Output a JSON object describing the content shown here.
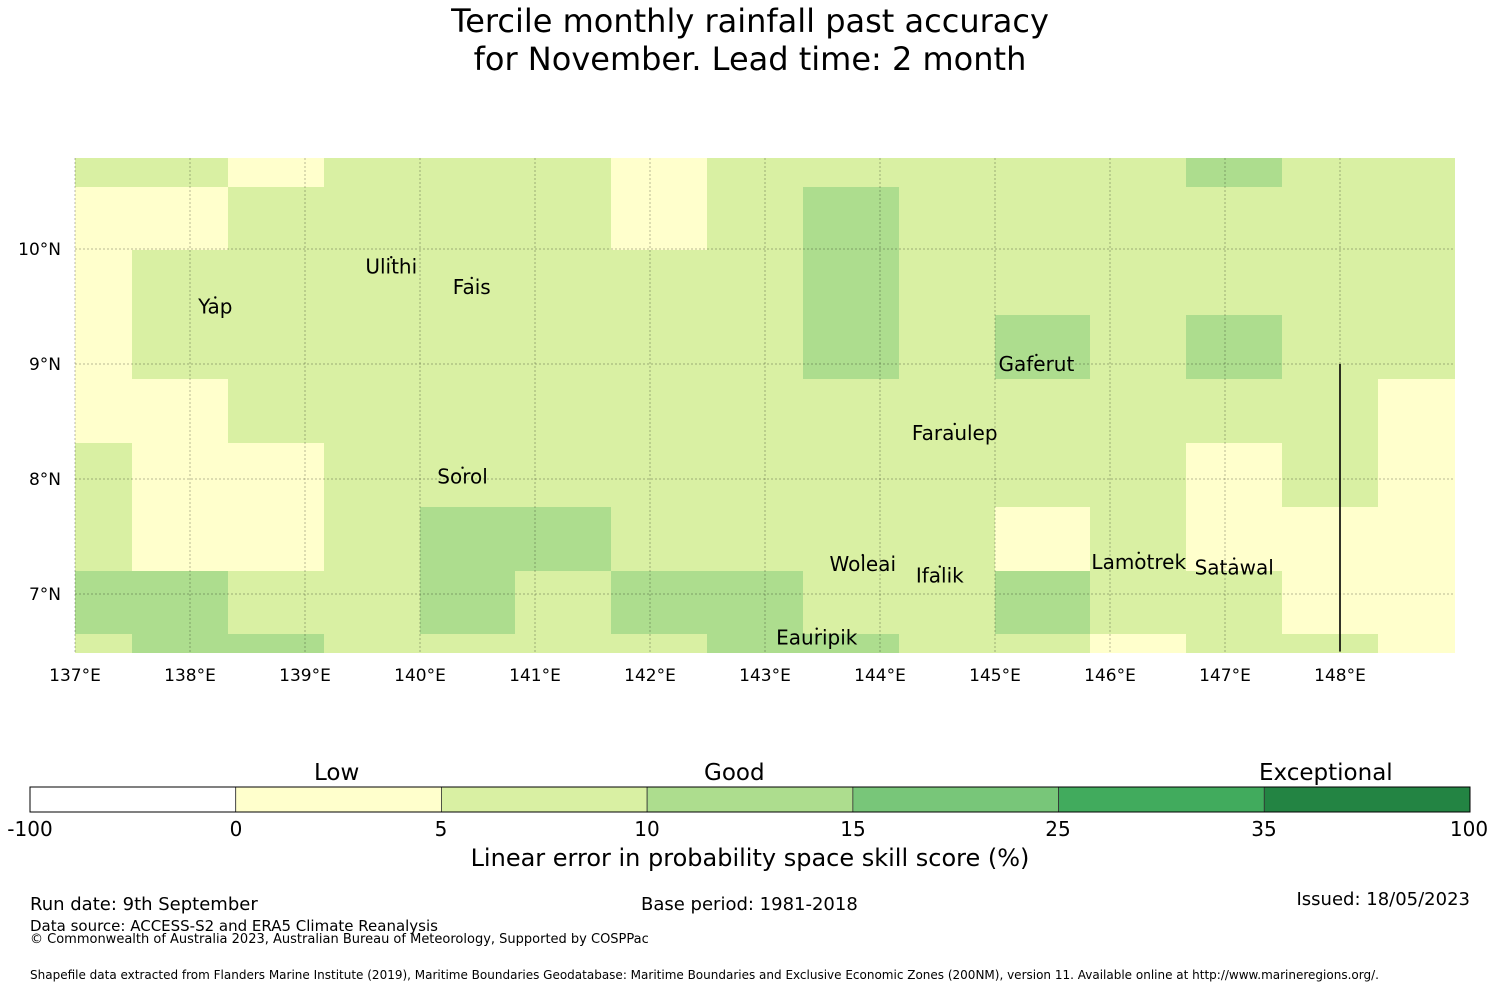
{
  "title": {
    "line1": "Tercile monthly rainfall past accuracy",
    "line2": "for November. Lead time: 2 month"
  },
  "map": {
    "lon_range": [
      137,
      149
    ],
    "lat_range": [
      6.5,
      10.8
    ],
    "x_ticks": [
      "137°E",
      "138°E",
      "139°E",
      "140°E",
      "141°E",
      "142°E",
      "143°E",
      "144°E",
      "145°E",
      "146°E",
      "147°E",
      "148°E"
    ],
    "y_ticks": [
      "10°N",
      "9°N",
      "8°N",
      "7°N"
    ],
    "places": [
      {
        "name": "Ulithi",
        "lon": 139.75,
        "lat": 9.85
      },
      {
        "name": "Fais",
        "lon": 140.45,
        "lat": 9.67
      },
      {
        "name": "Yap",
        "lon": 138.22,
        "lat": 9.5
      },
      {
        "name": "Gaferut",
        "lon": 145.36,
        "lat": 9.0
      },
      {
        "name": "Faraulep",
        "lon": 144.65,
        "lat": 8.4
      },
      {
        "name": "Sorol",
        "lon": 140.37,
        "lat": 8.02
      },
      {
        "name": "Woleai",
        "lon": 143.85,
        "lat": 7.26
      },
      {
        "name": "Ifalik",
        "lon": 144.52,
        "lat": 7.16
      },
      {
        "name": "Lamotrek",
        "lon": 146.25,
        "lat": 7.28
      },
      {
        "name": "Satawal",
        "lon": 147.08,
        "lat": 7.23
      },
      {
        "name": "Eauripik",
        "lon": 143.45,
        "lat": 6.62
      }
    ],
    "boundary_line": {
      "lon": 148.0,
      "lat_from": 9.0,
      "lat_to": 6.5
    }
  },
  "colors": {
    "low": "#ffffcc",
    "good_low": "#d9f0a3",
    "good_high": "#addd8e",
    "c15": "#78c679",
    "c25": "#41ab5d",
    "c35": "#238443",
    "none": "#ffffff"
  },
  "colorbar": {
    "bins": [
      "none",
      "low",
      "good_low",
      "good_high",
      "c15",
      "c25",
      "c35"
    ],
    "ticks": [
      "-100",
      "0",
      "5",
      "10",
      "15",
      "25",
      "35",
      "100"
    ],
    "classes": [
      "Low",
      "Good",
      "Exceptional"
    ],
    "label": "Linear error in probability space skill score (%)"
  },
  "footer": {
    "run_date": "Run date: 9th September",
    "base_period": "Base period: 1981-2018",
    "issued": "Issued: 18/05/2023",
    "data_source": "Data source: ACCESS-S2 and ERA5 Climate Reanalysis",
    "copyright": "© Commonwealth of Australia 2023, Australian Bureau of Meteorology, Supported by COSPPac",
    "shapefile": "Shapefile data extracted from Flanders Marine Institute (2019), Maritime Boundaries Geodatabase: Maritime Boundaries and Exclusive Economic Zones (200NM), version 11. Available online at http://www.marineregions.org/."
  }
}
